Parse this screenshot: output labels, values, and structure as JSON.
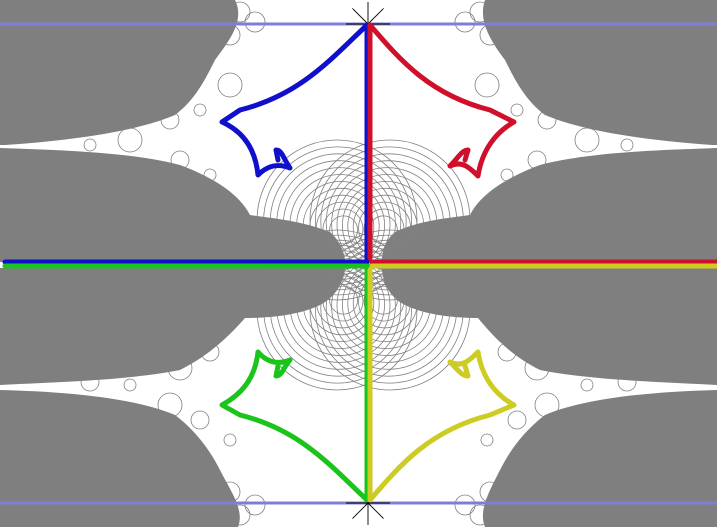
{
  "figure": {
    "kind": "parameter-plane fractal with four colored path loops",
    "colors": {
      "background": "#ffffff",
      "fractal_fill": "#7f7f7f",
      "level_lines": "#808080",
      "boundary_lines": "#7b80d6",
      "crosshair": "#000000"
    },
    "paths": [
      {
        "id": "blue",
        "color": "#1010cc"
      },
      {
        "id": "red",
        "color": "#d0102a"
      },
      {
        "id": "green",
        "color": "#1ac41a"
      },
      {
        "id": "yellow",
        "color": "#cccc22"
      }
    ]
  }
}
